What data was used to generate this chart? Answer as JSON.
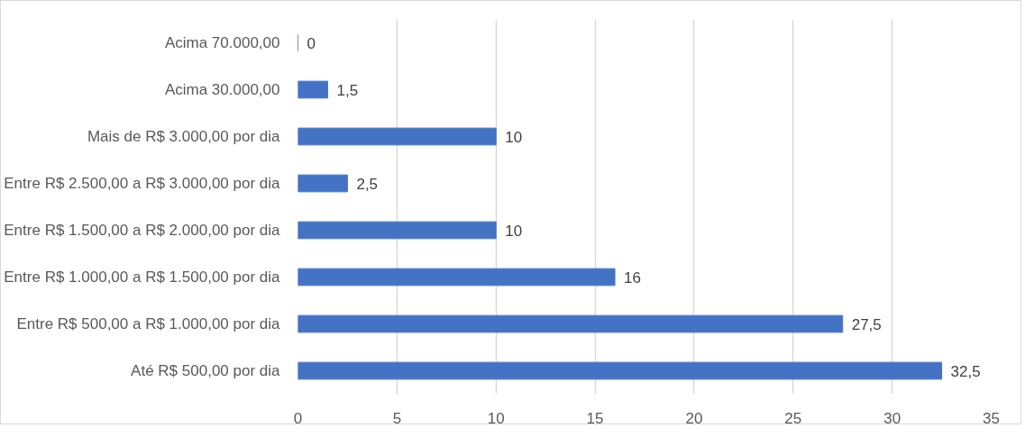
{
  "chart_data": {
    "type": "bar",
    "orientation": "horizontal",
    "categories": [
      "Acima 70.000,00",
      "Acima 30.000,00",
      "Mais de R$ 3.000,00 por dia",
      "Entre R$ 2.500,00 a R$ 3.000,00 por dia",
      "Entre R$ 1.500,00 a R$ 2.000,00 por dia",
      "Entre R$ 1.000,00 a R$ 1.500,00 por dia",
      "Entre R$ 500,00 a R$ 1.000,00 por dia",
      "Até R$ 500,00 por dia"
    ],
    "values": [
      0,
      1.5,
      10,
      2.5,
      10,
      16,
      27.5,
      32.5
    ],
    "value_labels": [
      "0",
      "1,5",
      "10",
      "2,5",
      "10",
      "16",
      "27,5",
      "32,5"
    ],
    "color": "#4472c4",
    "xlim": [
      0,
      35
    ],
    "xticks": [
      0,
      5,
      10,
      15,
      20,
      25,
      30,
      35
    ],
    "grid": "x"
  }
}
